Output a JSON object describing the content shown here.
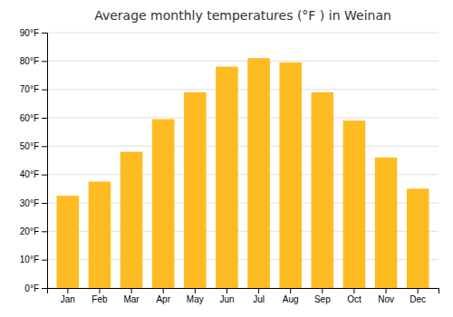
{
  "chart_data": {
    "type": "bar",
    "title": "Average monthly temperatures (°F ) in Weinan",
    "categories": [
      "Jan",
      "Feb",
      "Mar",
      "Apr",
      "May",
      "Jun",
      "Jul",
      "Aug",
      "Sep",
      "Oct",
      "Nov",
      "Dec"
    ],
    "values": [
      32.5,
      37.5,
      48,
      59.5,
      69,
      78,
      81,
      79.5,
      69,
      59,
      46,
      35
    ],
    "color": "#FFBB22",
    "ylim": [
      0,
      90
    ],
    "yticks": [
      {
        "value": 0,
        "label": "0°F"
      },
      {
        "value": 10,
        "label": "10°F"
      },
      {
        "value": 20,
        "label": "20°F"
      },
      {
        "value": 30,
        "label": "30°F"
      },
      {
        "value": 40,
        "label": "40°F"
      },
      {
        "value": 50,
        "label": "50°F"
      },
      {
        "value": 60,
        "label": "60°F"
      },
      {
        "value": 70,
        "label": "70°F"
      },
      {
        "value": 80,
        "label": "80°F"
      },
      {
        "value": 90,
        "label": "90°F"
      }
    ],
    "grid": true
  }
}
